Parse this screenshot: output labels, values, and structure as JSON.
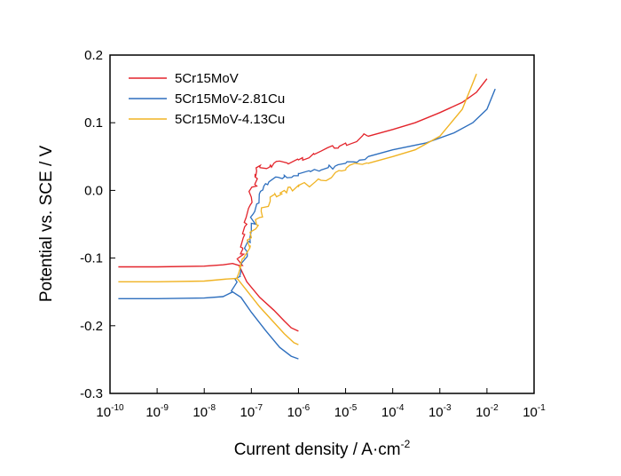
{
  "chart_data": {
    "type": "line",
    "title": "",
    "xlabel": "Current density / A·cm",
    "xlabel_sup": "-2",
    "ylabel": "Potential vs. SCE / V",
    "x_scale": "log",
    "xlim": [
      1e-10,
      0.1
    ],
    "ylim": [
      -0.3,
      0.2
    ],
    "x_ticks": [
      {
        "base": "10",
        "exp": "-10",
        "value": 1e-10
      },
      {
        "base": "10",
        "exp": "-9",
        "value": 1e-09
      },
      {
        "base": "10",
        "exp": "-8",
        "value": 1e-08
      },
      {
        "base": "10",
        "exp": "-7",
        "value": 1e-07
      },
      {
        "base": "10",
        "exp": "-6",
        "value": 1e-06
      },
      {
        "base": "10",
        "exp": "-5",
        "value": 1e-05
      },
      {
        "base": "10",
        "exp": "-4",
        "value": 0.0001
      },
      {
        "base": "10",
        "exp": "-3",
        "value": 0.001
      },
      {
        "base": "10",
        "exp": "-2",
        "value": 0.01
      },
      {
        "base": "10",
        "exp": "-1",
        "value": 0.1
      }
    ],
    "y_ticks": [
      "-0.3",
      "-0.2",
      "-0.1",
      "0.0",
      "0.1",
      "0.2"
    ],
    "y_tick_values": [
      -0.3,
      -0.2,
      -0.1,
      0.0,
      0.1,
      0.2
    ],
    "grid": false,
    "legend_position": "top-left",
    "series": [
      {
        "name": "5Cr15MoV",
        "color": "#e3242b",
        "cathodic": [
          [
            1.5e-10,
            -0.113
          ],
          [
            1e-09,
            -0.113
          ],
          [
            1e-08,
            -0.112
          ],
          [
            2.5e-08,
            -0.11
          ],
          [
            4e-08,
            -0.108
          ],
          [
            5.5e-08,
            -0.111
          ],
          [
            8e-08,
            -0.135
          ],
          [
            1.5e-07,
            -0.158
          ],
          [
            3e-07,
            -0.177
          ],
          [
            5e-07,
            -0.193
          ],
          [
            7e-07,
            -0.203
          ],
          [
            1e-06,
            -0.208
          ]
        ],
        "anodic": [
          [
            5.5e-08,
            -0.111
          ],
          [
            6.5e-08,
            -0.085
          ],
          [
            8e-08,
            -0.05
          ],
          [
            1e-07,
            -0.01
          ],
          [
            1.2e-07,
            0.02
          ],
          [
            1.5e-07,
            0.035
          ],
          [
            3e-07,
            0.04
          ],
          [
            1e-06,
            0.045
          ],
          [
            3e-06,
            0.058
          ],
          [
            1e-05,
            0.07
          ],
          [
            3e-05,
            0.08
          ],
          [
            0.0001,
            0.09
          ],
          [
            0.0003,
            0.1
          ],
          [
            0.001,
            0.115
          ],
          [
            0.003,
            0.13
          ],
          [
            0.006,
            0.145
          ],
          [
            0.01,
            0.165
          ]
        ]
      },
      {
        "name": "5Cr15MoV-2.81Cu",
        "color": "#2e6fbe",
        "cathodic": [
          [
            1.5e-10,
            -0.16
          ],
          [
            1e-09,
            -0.16
          ],
          [
            1e-08,
            -0.159
          ],
          [
            2.5e-08,
            -0.157
          ],
          [
            4e-08,
            -0.15
          ],
          [
            6e-08,
            -0.158
          ],
          [
            1e-07,
            -0.18
          ],
          [
            2e-07,
            -0.207
          ],
          [
            4e-07,
            -0.232
          ],
          [
            7e-07,
            -0.245
          ],
          [
            1e-06,
            -0.249
          ]
        ],
        "anodic": [
          [
            4e-08,
            -0.15
          ],
          [
            6e-08,
            -0.12
          ],
          [
            8e-08,
            -0.09
          ],
          [
            1e-07,
            -0.06
          ],
          [
            1.3e-07,
            -0.02
          ],
          [
            2e-07,
            0.01
          ],
          [
            5e-07,
            0.02
          ],
          [
            1e-06,
            0.025
          ],
          [
            3e-06,
            0.03
          ],
          [
            1e-05,
            0.04
          ],
          [
            3e-05,
            0.05
          ],
          [
            0.0001,
            0.06
          ],
          [
            0.0005,
            0.07
          ],
          [
            0.002,
            0.085
          ],
          [
            0.005,
            0.1
          ],
          [
            0.01,
            0.12
          ],
          [
            0.015,
            0.15
          ]
        ]
      },
      {
        "name": "5Cr15MoV-4.13Cu",
        "color": "#f0b323",
        "cathodic": [
          [
            1.5e-10,
            -0.135
          ],
          [
            1e-09,
            -0.135
          ],
          [
            1e-08,
            -0.134
          ],
          [
            3e-08,
            -0.131
          ],
          [
            5e-08,
            -0.13
          ],
          [
            8e-08,
            -0.148
          ],
          [
            1.5e-07,
            -0.172
          ],
          [
            3e-07,
            -0.195
          ],
          [
            5e-07,
            -0.212
          ],
          [
            8e-07,
            -0.225
          ],
          [
            1e-06,
            -0.228
          ]
        ],
        "anodic": [
          [
            5e-08,
            -0.13
          ],
          [
            7e-08,
            -0.1
          ],
          [
            1e-07,
            -0.07
          ],
          [
            1.5e-07,
            -0.04
          ],
          [
            2.5e-07,
            -0.01
          ],
          [
            5e-07,
            0.0
          ],
          [
            1e-06,
            0.005
          ],
          [
            3e-06,
            0.015
          ],
          [
            1e-05,
            0.03
          ],
          [
            3e-05,
            0.04
          ],
          [
            0.0001,
            0.05
          ],
          [
            0.0003,
            0.06
          ],
          [
            0.001,
            0.08
          ],
          [
            0.003,
            0.12
          ],
          [
            0.006,
            0.172
          ]
        ]
      }
    ]
  }
}
